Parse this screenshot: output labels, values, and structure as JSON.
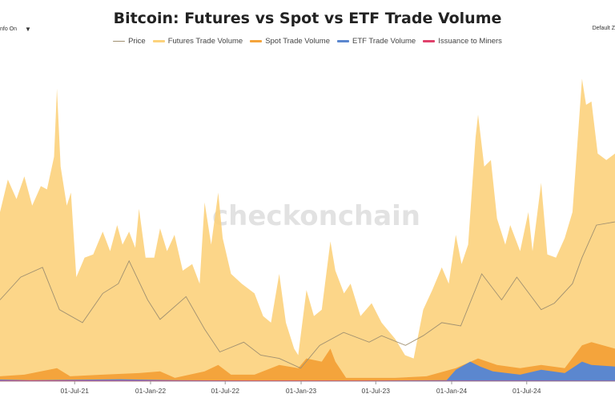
{
  "title": "Bitcoin: Futures vs Spot vs ETF Trade Volume",
  "controls": {
    "info_toggle": "nfo On",
    "info_caret": "▼",
    "default_button": "Default Z"
  },
  "watermark": "checkonchain",
  "colors": {
    "price": "#a09070",
    "futures": "#fcd27c",
    "spot": "#f4a43c",
    "etf": "#5b87cf",
    "issuance": "#e0416b"
  },
  "legend": [
    {
      "name": "Price",
      "key": "price",
      "style": "line"
    },
    {
      "name": "Futures Trade Volume",
      "key": "futures",
      "style": "area"
    },
    {
      "name": "Spot Trade Volume",
      "key": "spot",
      "style": "area"
    },
    {
      "name": "ETF Trade Volume",
      "key": "etf",
      "style": "area"
    },
    {
      "name": "Issuance to Miners",
      "key": "issuance",
      "style": "area"
    }
  ],
  "chart_data": {
    "type": "area",
    "title": "Bitcoin: Futures vs Spot vs ETF Trade Volume",
    "xlabel": "",
    "ylabel": "",
    "x_ticks": [
      "01-Jul-21",
      "01-Jan-22",
      "01-Jul-22",
      "01-Jan-23",
      "01-Jul-23",
      "01-Jan-24",
      "01-Jul-24"
    ],
    "x_range": [
      "2021-01-01",
      "2025-01-31"
    ],
    "grid": false,
    "legend_position": "top",
    "series": [
      {
        "name": "Futures Trade Volume",
        "points": [
          [
            "2021-01-01",
            0.52
          ],
          [
            "2021-01-20",
            0.62
          ],
          [
            "2021-02-10",
            0.56
          ],
          [
            "2021-03-01",
            0.63
          ],
          [
            "2021-03-20",
            0.54
          ],
          [
            "2021-04-10",
            0.6
          ],
          [
            "2021-04-25",
            0.59
          ],
          [
            "2021-05-12",
            0.69
          ],
          [
            "2021-05-19",
            0.9
          ],
          [
            "2021-05-28",
            0.66
          ],
          [
            "2021-06-12",
            0.54
          ],
          [
            "2021-06-22",
            0.58
          ],
          [
            "2021-07-05",
            0.32
          ],
          [
            "2021-07-25",
            0.38
          ],
          [
            "2021-08-15",
            0.39
          ],
          [
            "2021-09-07",
            0.46
          ],
          [
            "2021-09-25",
            0.4
          ],
          [
            "2021-10-12",
            0.48
          ],
          [
            "2021-10-25",
            0.42
          ],
          [
            "2021-11-10",
            0.46
          ],
          [
            "2021-11-25",
            0.41
          ],
          [
            "2021-12-04",
            0.53
          ],
          [
            "2021-12-20",
            0.38
          ],
          [
            "2022-01-10",
            0.38
          ],
          [
            "2022-01-24",
            0.47
          ],
          [
            "2022-02-10",
            0.4
          ],
          [
            "2022-02-28",
            0.45
          ],
          [
            "2022-03-20",
            0.34
          ],
          [
            "2022-04-12",
            0.36
          ],
          [
            "2022-04-30",
            0.3
          ],
          [
            "2022-05-12",
            0.55
          ],
          [
            "2022-05-28",
            0.42
          ],
          [
            "2022-06-14",
            0.58
          ],
          [
            "2022-06-25",
            0.44
          ],
          [
            "2022-07-15",
            0.33
          ],
          [
            "2022-08-10",
            0.3
          ],
          [
            "2022-09-10",
            0.27
          ],
          [
            "2022-10-01",
            0.2
          ],
          [
            "2022-10-20",
            0.18
          ],
          [
            "2022-11-09",
            0.33
          ],
          [
            "2022-11-25",
            0.18
          ],
          [
            "2022-12-15",
            0.1
          ],
          [
            "2022-12-25",
            0.08
          ],
          [
            "2023-01-14",
            0.28
          ],
          [
            "2023-02-01",
            0.2
          ],
          [
            "2023-02-20",
            0.22
          ],
          [
            "2023-03-13",
            0.43
          ],
          [
            "2023-03-25",
            0.34
          ],
          [
            "2023-04-15",
            0.27
          ],
          [
            "2023-05-01",
            0.3
          ],
          [
            "2023-05-25",
            0.2
          ],
          [
            "2023-06-21",
            0.24
          ],
          [
            "2023-07-15",
            0.18
          ],
          [
            "2023-08-17",
            0.13
          ],
          [
            "2023-09-10",
            0.08
          ],
          [
            "2023-10-01",
            0.07
          ],
          [
            "2023-10-24",
            0.22
          ],
          [
            "2023-11-15",
            0.28
          ],
          [
            "2023-12-08",
            0.35
          ],
          [
            "2023-12-25",
            0.3
          ],
          [
            "2024-01-11",
            0.45
          ],
          [
            "2024-01-25",
            0.36
          ],
          [
            "2024-02-10",
            0.42
          ],
          [
            "2024-02-28",
            0.75
          ],
          [
            "2024-03-05",
            0.82
          ],
          [
            "2024-03-20",
            0.66
          ],
          [
            "2024-04-05",
            0.68
          ],
          [
            "2024-04-20",
            0.5
          ],
          [
            "2024-05-10",
            0.42
          ],
          [
            "2024-05-22",
            0.48
          ],
          [
            "2024-06-15",
            0.4
          ],
          [
            "2024-07-05",
            0.52
          ],
          [
            "2024-07-15",
            0.4
          ],
          [
            "2024-08-05",
            0.61
          ],
          [
            "2024-08-20",
            0.39
          ],
          [
            "2024-09-10",
            0.38
          ],
          [
            "2024-10-01",
            0.44
          ],
          [
            "2024-10-20",
            0.52
          ],
          [
            "2024-11-12",
            0.93
          ],
          [
            "2024-11-22",
            0.85
          ],
          [
            "2024-12-05",
            0.86
          ],
          [
            "2024-12-20",
            0.7
          ],
          [
            "2025-01-10",
            0.68
          ],
          [
            "2025-01-31",
            0.7
          ]
        ]
      },
      {
        "name": "Spot Trade Volume",
        "points": [
          [
            "2021-01-01",
            0.015
          ],
          [
            "2021-03-01",
            0.02
          ],
          [
            "2021-05-19",
            0.04
          ],
          [
            "2021-06-20",
            0.015
          ],
          [
            "2021-09-07",
            0.02
          ],
          [
            "2021-12-04",
            0.025
          ],
          [
            "2022-01-24",
            0.03
          ],
          [
            "2022-03-01",
            0.01
          ],
          [
            "2022-05-12",
            0.03
          ],
          [
            "2022-06-14",
            0.05
          ],
          [
            "2022-07-15",
            0.02
          ],
          [
            "2022-09-10",
            0.02
          ],
          [
            "2022-11-09",
            0.05
          ],
          [
            "2022-12-25",
            0.04
          ],
          [
            "2023-01-14",
            0.07
          ],
          [
            "2023-02-20",
            0.06
          ],
          [
            "2023-03-13",
            0.1
          ],
          [
            "2023-03-25",
            0.06
          ],
          [
            "2023-04-20",
            0.01
          ],
          [
            "2023-08-17",
            0.01
          ],
          [
            "2023-11-01",
            0.015
          ],
          [
            "2024-01-11",
            0.04
          ],
          [
            "2024-03-05",
            0.07
          ],
          [
            "2024-04-20",
            0.05
          ],
          [
            "2024-06-15",
            0.04
          ],
          [
            "2024-08-05",
            0.05
          ],
          [
            "2024-10-01",
            0.04
          ],
          [
            "2024-11-12",
            0.11
          ],
          [
            "2024-12-05",
            0.12
          ],
          [
            "2025-01-31",
            0.1
          ]
        ]
      },
      {
        "name": "ETF Trade Volume",
        "points": [
          [
            "2021-01-01",
            0.005
          ],
          [
            "2021-03-15",
            0.003
          ],
          [
            "2021-06-01",
            0.004
          ],
          [
            "2021-10-20",
            0.006
          ],
          [
            "2022-03-01",
            0.003
          ],
          [
            "2022-09-01",
            0.002
          ],
          [
            "2023-06-01",
            0.002
          ],
          [
            "2023-12-20",
            0.003
          ],
          [
            "2024-01-11",
            0.035
          ],
          [
            "2024-02-15",
            0.06
          ],
          [
            "2024-03-10",
            0.045
          ],
          [
            "2024-04-10",
            0.03
          ],
          [
            "2024-06-15",
            0.02
          ],
          [
            "2024-08-05",
            0.035
          ],
          [
            "2024-10-01",
            0.025
          ],
          [
            "2024-11-12",
            0.06
          ],
          [
            "2024-12-05",
            0.05
          ],
          [
            "2025-01-31",
            0.045
          ]
        ]
      },
      {
        "name": "Issuance to Miners",
        "points": [
          [
            "2021-01-01",
            0.002
          ],
          [
            "2025-01-31",
            0.001
          ]
        ]
      },
      {
        "name": "Price",
        "points": [
          [
            "2021-01-01",
            0.25
          ],
          [
            "2021-02-20",
            0.32
          ],
          [
            "2021-04-14",
            0.35
          ],
          [
            "2021-05-25",
            0.22
          ],
          [
            "2021-07-20",
            0.18
          ],
          [
            "2021-09-07",
            0.27
          ],
          [
            "2021-10-15",
            0.3
          ],
          [
            "2021-11-10",
            0.37
          ],
          [
            "2021-12-25",
            0.25
          ],
          [
            "2022-01-24",
            0.19
          ],
          [
            "2022-03-28",
            0.26
          ],
          [
            "2022-05-12",
            0.16
          ],
          [
            "2022-06-18",
            0.09
          ],
          [
            "2022-08-15",
            0.12
          ],
          [
            "2022-09-25",
            0.08
          ],
          [
            "2022-11-09",
            0.07
          ],
          [
            "2022-12-31",
            0.04
          ],
          [
            "2023-02-15",
            0.11
          ],
          [
            "2023-04-14",
            0.15
          ],
          [
            "2023-06-15",
            0.12
          ],
          [
            "2023-07-15",
            0.14
          ],
          [
            "2023-09-11",
            0.11
          ],
          [
            "2023-10-24",
            0.14
          ],
          [
            "2023-12-08",
            0.18
          ],
          [
            "2024-01-23",
            0.17
          ],
          [
            "2024-03-14",
            0.33
          ],
          [
            "2024-05-01",
            0.25
          ],
          [
            "2024-06-07",
            0.32
          ],
          [
            "2024-08-05",
            0.22
          ],
          [
            "2024-09-06",
            0.24
          ],
          [
            "2024-10-20",
            0.3
          ],
          [
            "2024-11-12",
            0.38
          ],
          [
            "2024-12-17",
            0.48
          ],
          [
            "2025-01-31",
            0.49
          ]
        ]
      }
    ]
  }
}
